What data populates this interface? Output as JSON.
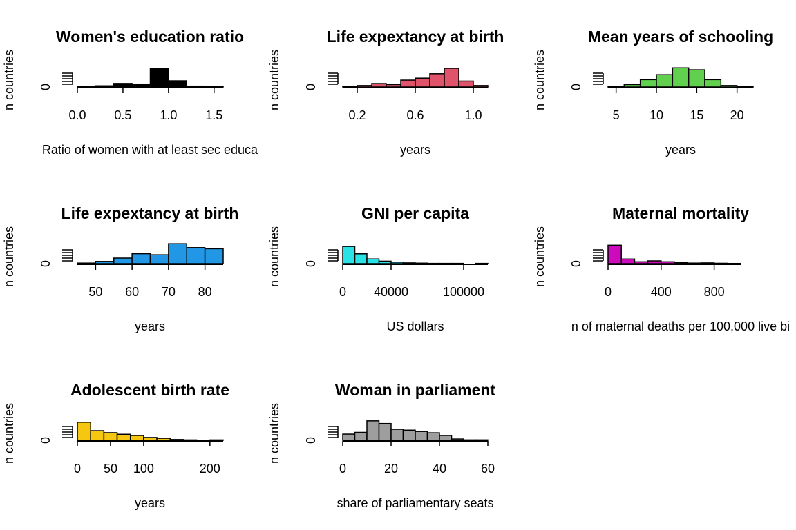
{
  "chart_data": [
    {
      "type": "bar",
      "title": "Women's education ratio",
      "xlabel": "Ratio of women with at least sec educa",
      "ylabel": "n countries",
      "y_tick_labels": [
        "0"
      ],
      "x_tick_labels": [
        "0.0",
        "0.5",
        "1.0",
        "1.5"
      ],
      "x_ticks": [
        0.0,
        0.5,
        1.0,
        1.5
      ],
      "xlim": [
        0.0,
        1.6
      ],
      "bin_edges": [
        0.0,
        0.2,
        0.4,
        0.6,
        0.8,
        1.0,
        1.2,
        1.4,
        1.6
      ],
      "values": [
        2,
        4,
        12,
        10,
        63,
        21,
        3,
        1
      ],
      "ylim": [
        0,
        75
      ],
      "bar_color": "#000000"
    },
    {
      "type": "bar",
      "title": "Life expextancy at birth",
      "xlabel": "years",
      "ylabel": "n countries",
      "y_tick_labels": [
        "0"
      ],
      "x_tick_labels": [
        "0.2",
        "0.6",
        "1.0"
      ],
      "x_ticks": [
        0.2,
        0.6,
        1.0
      ],
      "xlim": [
        0.1,
        1.1
      ],
      "bin_edges": [
        0.1,
        0.2,
        0.3,
        0.4,
        0.5,
        0.6,
        0.7,
        0.8,
        0.9,
        1.0,
        1.1
      ],
      "values": [
        1,
        3,
        7,
        5,
        14,
        18,
        27,
        38,
        12,
        3
      ],
      "ylim": [
        0,
        45
      ],
      "bar_color": "#DF536B"
    },
    {
      "type": "bar",
      "title": "Mean years of schooling",
      "xlabel": "years",
      "ylabel": "n countries",
      "y_tick_labels": [
        "0"
      ],
      "x_tick_labels": [
        "5",
        "10",
        "15",
        "20"
      ],
      "x_ticks": [
        5,
        10,
        15,
        20
      ],
      "xlim": [
        4,
        22
      ],
      "bin_edges": [
        4,
        6,
        8,
        10,
        12,
        14,
        16,
        18,
        20,
        22
      ],
      "values": [
        1,
        5,
        15,
        25,
        39,
        35,
        15,
        3,
        1
      ],
      "ylim": [
        0,
        45
      ],
      "bar_color": "#61D04F"
    },
    {
      "type": "bar",
      "title": "Life expextancy at birth",
      "xlabel": "years",
      "ylabel": "n countries",
      "y_tick_labels": [
        "0"
      ],
      "x_tick_labels": [
        "50",
        "60",
        "70",
        "80"
      ],
      "x_ticks": [
        50,
        60,
        70,
        80
      ],
      "xlim": [
        45,
        85
      ],
      "bin_edges": [
        45,
        50,
        55,
        60,
        65,
        70,
        75,
        80,
        85
      ],
      "values": [
        1,
        4,
        10,
        18,
        16,
        36,
        29,
        27
      ],
      "ylim": [
        0,
        40
      ],
      "bar_color": "#2297E6"
    },
    {
      "type": "bar",
      "title": "GNI per capita",
      "xlabel": "US dollars",
      "ylabel": "n countries",
      "y_tick_labels": [
        "0"
      ],
      "x_tick_labels": [
        "0",
        "40000",
        "100000"
      ],
      "x_ticks": [
        0,
        40000,
        100000
      ],
      "xlim": [
        0,
        120000
      ],
      "bin_edges": [
        0,
        10000,
        20000,
        30000,
        40000,
        50000,
        60000,
        70000,
        80000,
        90000,
        100000,
        110000,
        120000
      ],
      "values": [
        70,
        40,
        19,
        10,
        6,
        3,
        2,
        1,
        1,
        1,
        0,
        1
      ],
      "ylim": [
        0,
        90
      ],
      "bar_color": "#28E2E5"
    },
    {
      "type": "bar",
      "title": "Maternal mortality",
      "xlabel": "n of maternal deaths per 100,000 live bi",
      "ylabel": "n countries",
      "y_tick_labels": [
        "0"
      ],
      "x_tick_labels": [
        "0",
        "400",
        "800"
      ],
      "x_ticks": [
        0,
        400,
        800
      ],
      "xlim": [
        0,
        1000
      ],
      "bin_edges": [
        0,
        100,
        200,
        300,
        400,
        500,
        600,
        700,
        800,
        900,
        1000
      ],
      "values": [
        100,
        25,
        10,
        15,
        10,
        5,
        3,
        4,
        2,
        1
      ],
      "ylim": [
        0,
        120
      ],
      "bar_color": "#CD0BBC"
    },
    {
      "type": "bar",
      "title": "Adolescent birth rate",
      "xlabel": "years",
      "ylabel": "n countries",
      "y_tick_labels": [
        "0"
      ],
      "x_tick_labels": [
        "0",
        "50",
        "100",
        "200"
      ],
      "x_ticks": [
        0,
        50,
        100,
        200
      ],
      "xlim": [
        0,
        220
      ],
      "bin_edges": [
        0,
        20,
        40,
        60,
        80,
        100,
        120,
        140,
        160,
        180,
        200,
        220
      ],
      "values": [
        45,
        24,
        19,
        15,
        12,
        7,
        5,
        2,
        1,
        0,
        1
      ],
      "ylim": [
        0,
        55
      ],
      "bar_color": "#F5C710"
    },
    {
      "type": "bar",
      "title": "Woman in parliament",
      "xlabel": "share of parliamentary seats",
      "ylabel": "n countries",
      "y_tick_labels": [
        "0"
      ],
      "x_tick_labels": [
        "0",
        "20",
        "40",
        "60"
      ],
      "x_ticks": [
        0,
        20,
        40,
        60
      ],
      "xlim": [
        0,
        60
      ],
      "bin_edges": [
        0,
        5,
        10,
        15,
        20,
        25,
        30,
        35,
        40,
        45,
        50,
        55,
        60
      ],
      "values": [
        14,
        18,
        44,
        38,
        25,
        23,
        20,
        17,
        11,
        3,
        1,
        1
      ],
      "ylim": [
        0,
        50
      ],
      "bar_color": "#9E9E9E"
    }
  ]
}
